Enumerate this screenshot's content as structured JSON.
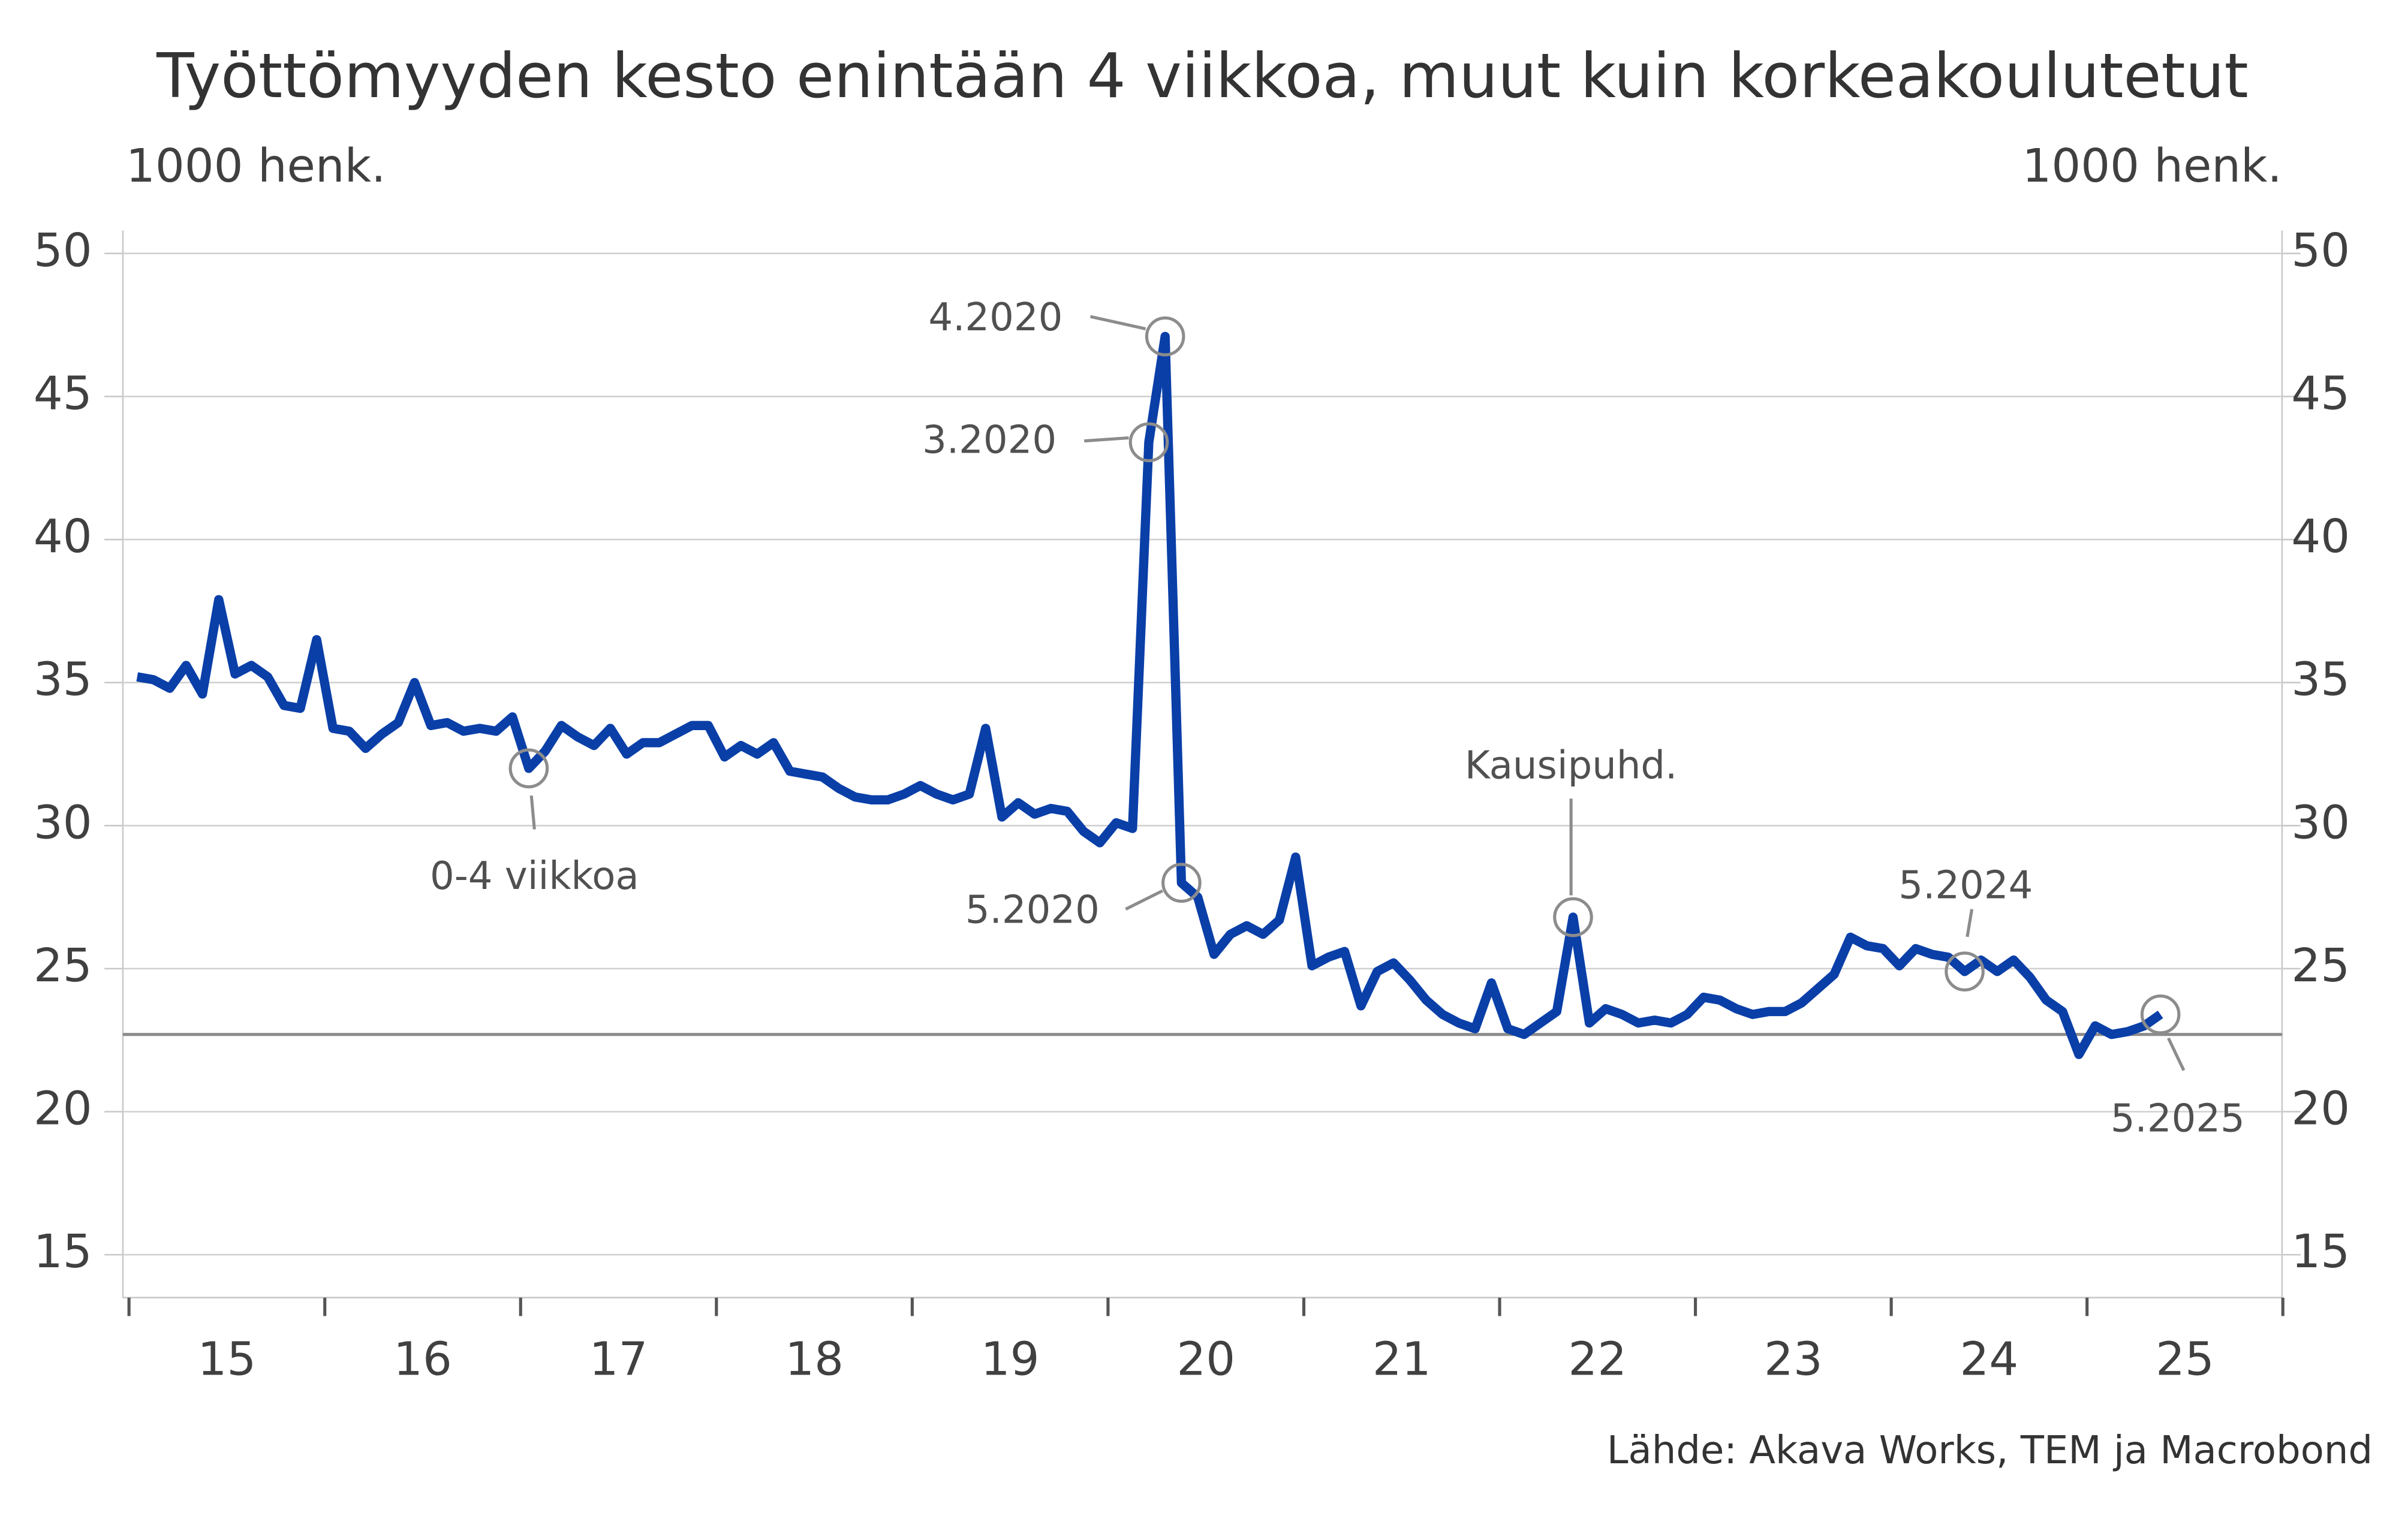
{
  "chart_data": {
    "type": "line",
    "title": "Työttömyyden kesto enintään 4 viikkoa, muut kuin korkeakoulutetut",
    "y_label": "1000 henk.",
    "y2_label": "1000 henk.",
    "source": "Lähde: Akava Works, TEM ja Macrobond",
    "x": [
      "1.2015",
      "2.2015",
      "3.2015",
      "4.2015",
      "5.2015",
      "6.2015",
      "7.2015",
      "8.2015",
      "9.2015",
      "10.2015",
      "11.2015",
      "12.2015",
      "1.2016",
      "2.2016",
      "3.2016",
      "4.2016",
      "5.2016",
      "6.2016",
      "7.2016",
      "8.2016",
      "9.2016",
      "10.2016",
      "11.2016",
      "12.2016",
      "1.2017",
      "2.2017",
      "3.2017",
      "4.2017",
      "5.2017",
      "6.2017",
      "7.2017",
      "8.2017",
      "9.2017",
      "10.2017",
      "11.2017",
      "12.2017",
      "1.2018",
      "2.2018",
      "3.2018",
      "4.2018",
      "5.2018",
      "6.2018",
      "7.2018",
      "8.2018",
      "9.2018",
      "10.2018",
      "11.2018",
      "12.2018",
      "1.2019",
      "2.2019",
      "3.2019",
      "4.2019",
      "5.2019",
      "6.2019",
      "7.2019",
      "8.2019",
      "9.2019",
      "10.2019",
      "11.2019",
      "12.2019",
      "1.2020",
      "2.2020",
      "3.2020",
      "4.2020",
      "5.2020",
      "6.2020",
      "7.2020",
      "8.2020",
      "9.2020",
      "10.2020",
      "11.2020",
      "12.2020",
      "1.2021",
      "2.2021",
      "3.2021",
      "4.2021",
      "5.2021",
      "6.2021",
      "7.2021",
      "8.2021",
      "9.2021",
      "10.2021",
      "11.2021",
      "12.2021",
      "1.2022",
      "2.2022",
      "3.2022",
      "4.2022",
      "5.2022",
      "6.2022",
      "7.2022",
      "8.2022",
      "9.2022",
      "10.2022",
      "11.2022",
      "12.2022",
      "1.2023",
      "2.2023",
      "3.2023",
      "4.2023",
      "5.2023",
      "6.2023",
      "7.2023",
      "8.2023",
      "9.2023",
      "10.2023",
      "11.2023",
      "12.2023",
      "1.2024",
      "2.2024",
      "3.2024",
      "4.2024",
      "5.2024",
      "6.2024",
      "7.2024",
      "8.2024",
      "9.2024",
      "10.2024",
      "11.2024",
      "12.2024",
      "1.2025",
      "2.2025",
      "3.2025",
      "4.2025",
      "5.2025"
    ],
    "series": [
      {
        "name": "0-4 viikkoa",
        "color": "#0a3fa8",
        "values": [
          35.2,
          35.1,
          34.8,
          35.6,
          34.6,
          37.9,
          35.3,
          35.6,
          35.2,
          34.2,
          34.1,
          36.5,
          33.4,
          33.3,
          32.7,
          33.2,
          33.6,
          35.0,
          33.5,
          33.6,
          33.3,
          33.4,
          33.3,
          33.8,
          32.0,
          32.6,
          33.5,
          33.1,
          32.8,
          33.4,
          32.5,
          32.9,
          32.9,
          33.2,
          33.5,
          33.5,
          32.4,
          32.8,
          32.5,
          32.9,
          31.9,
          31.8,
          31.7,
          31.3,
          31.0,
          30.9,
          30.9,
          31.1,
          31.4,
          31.1,
          30.9,
          31.1,
          33.4,
          30.3,
          30.8,
          30.4,
          30.6,
          30.5,
          29.8,
          29.4,
          30.1,
          29.9,
          43.4,
          47.1,
          28.0,
          27.5,
          25.5,
          26.2,
          26.5,
          26.2,
          26.7,
          28.9,
          25.1,
          25.4,
          25.6,
          23.7,
          24.9,
          25.2,
          24.6,
          23.9,
          23.4,
          23.1,
          22.9,
          24.5,
          22.9,
          22.7,
          23.1,
          23.5,
          26.8,
          23.1,
          23.6,
          23.4,
          23.1,
          23.2,
          23.1,
          23.4,
          24.0,
          23.9,
          23.6,
          23.4,
          23.5,
          23.5,
          23.8,
          24.3,
          24.8,
          26.1,
          25.8,
          25.7,
          25.1,
          25.7,
          25.5,
          25.4,
          24.9,
          25.3,
          24.9,
          25.3,
          24.7,
          23.9,
          23.5,
          22.0,
          23.0,
          22.7,
          22.8,
          23.0,
          23.4
        ]
      }
    ],
    "hline": 22.7,
    "hline_color": "#8c8c8c",
    "annotations": [
      {
        "text": "0-4 viikkoa"
      },
      {
        "text": "3.2020"
      },
      {
        "text": "4.2020"
      },
      {
        "text": "5.2020"
      },
      {
        "text": "Kausipuhd."
      },
      {
        "text": "5.2024"
      },
      {
        "text": "5.2025"
      }
    ],
    "xticks": [
      "15",
      "16",
      "17",
      "18",
      "19",
      "20",
      "21",
      "22",
      "23",
      "24",
      "25"
    ],
    "ylim": [
      13.5,
      50.8
    ],
    "yticks": [
      15,
      20,
      25,
      30,
      35,
      40,
      45,
      50
    ],
    "y2lim": [
      13.5,
      50.8
    ],
    "y2ticks": [
      15,
      20,
      25,
      30,
      35,
      40,
      45,
      50
    ],
    "grid": true
  }
}
